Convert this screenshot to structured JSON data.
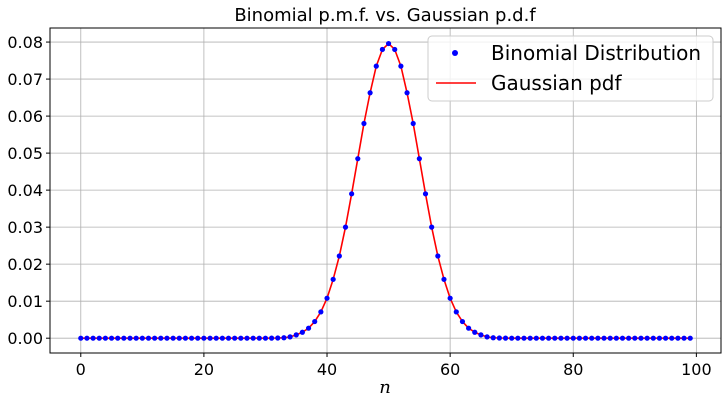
{
  "chart_data": {
    "type": "scatter+line",
    "title": "Binomial p.m.f. vs. Gaussian p.d.f",
    "xlabel": "n",
    "ylabel": "",
    "xlim": [
      -5,
      104
    ],
    "ylim": [
      -0.004,
      0.0838
    ],
    "xticks": [
      0,
      20,
      40,
      60,
      80,
      100
    ],
    "yticks": [
      0.0,
      0.01,
      0.02,
      0.03,
      0.04,
      0.05,
      0.06,
      0.07,
      0.08
    ],
    "ytick_labels": [
      "0.00",
      "0.01",
      "0.02",
      "0.03",
      "0.04",
      "0.05",
      "0.06",
      "0.07",
      "0.08"
    ],
    "grid": true,
    "legend_position": "top-right",
    "x": [
      0,
      1,
      2,
      3,
      4,
      5,
      6,
      7,
      8,
      9,
      10,
      11,
      12,
      13,
      14,
      15,
      16,
      17,
      18,
      19,
      20,
      21,
      22,
      23,
      24,
      25,
      26,
      27,
      28,
      29,
      30,
      31,
      32,
      33,
      34,
      35,
      36,
      37,
      38,
      39,
      40,
      41,
      42,
      43,
      44,
      45,
      46,
      47,
      48,
      49,
      50,
      51,
      52,
      53,
      54,
      55,
      56,
      57,
      58,
      59,
      60,
      61,
      62,
      63,
      64,
      65,
      66,
      67,
      68,
      69,
      70,
      71,
      72,
      73,
      74,
      75,
      76,
      77,
      78,
      79,
      80,
      81,
      82,
      83,
      84,
      85,
      86,
      87,
      88,
      89,
      90,
      91,
      92,
      93,
      94,
      95,
      96,
      97,
      98,
      99
    ],
    "series": [
      {
        "name": "Binomial Distribution",
        "kind": "markers",
        "color": "#0000ff",
        "values": [
          0,
          0,
          0,
          0,
          0,
          0,
          0,
          0,
          0,
          0,
          0,
          0,
          0,
          0,
          0,
          0,
          0,
          0,
          0,
          0,
          0,
          0,
          0,
          0,
          0,
          0,
          0,
          0,
          0,
          0,
          0,
          2e-05,
          5e-05,
          0.00012,
          0.00036,
          0.00089,
          0.0016,
          0.0027,
          0.0045,
          0.0071,
          0.0108,
          0.0159,
          0.0222,
          0.03,
          0.039,
          0.0485,
          0.058,
          0.0663,
          0.0735,
          0.078,
          0.0796,
          0.078,
          0.0735,
          0.0663,
          0.058,
          0.0485,
          0.039,
          0.03,
          0.0222,
          0.0159,
          0.0108,
          0.0071,
          0.0045,
          0.0027,
          0.0016,
          0.00089,
          0.00036,
          0.00012,
          5e-05,
          2e-05,
          0,
          0,
          0,
          0,
          0,
          0,
          0,
          0,
          0,
          0,
          0,
          0,
          0,
          0,
          0,
          0,
          0,
          0,
          0,
          0,
          0,
          0,
          0,
          0,
          0,
          0,
          0,
          0,
          0,
          0
        ]
      },
      {
        "name": "Gaussian pdf",
        "kind": "line",
        "color": "#ff0000",
        "values": [
          0,
          0,
          0,
          0,
          0,
          0,
          0,
          0,
          0,
          0,
          0,
          0,
          0,
          0,
          0,
          0,
          0,
          0,
          0,
          0,
          0,
          0,
          0,
          0,
          0,
          0,
          0,
          0,
          0,
          0,
          0,
          2e-05,
          5e-05,
          0.00012,
          0.00036,
          0.00089,
          0.0016,
          0.0027,
          0.0045,
          0.0071,
          0.0108,
          0.0159,
          0.0222,
          0.03,
          0.039,
          0.0485,
          0.058,
          0.0663,
          0.0735,
          0.078,
          0.0796,
          0.078,
          0.0735,
          0.0663,
          0.058,
          0.0485,
          0.039,
          0.03,
          0.0222,
          0.0159,
          0.0108,
          0.0071,
          0.0045,
          0.0027,
          0.0016,
          0.00089,
          0.00036,
          0.00012,
          5e-05,
          2e-05,
          0,
          0,
          0,
          0,
          0,
          0,
          0,
          0,
          0,
          0,
          0,
          0,
          0,
          0,
          0,
          0,
          0,
          0,
          0,
          0,
          0,
          0,
          0,
          0,
          0,
          0,
          0,
          0,
          0,
          0
        ]
      }
    ]
  }
}
